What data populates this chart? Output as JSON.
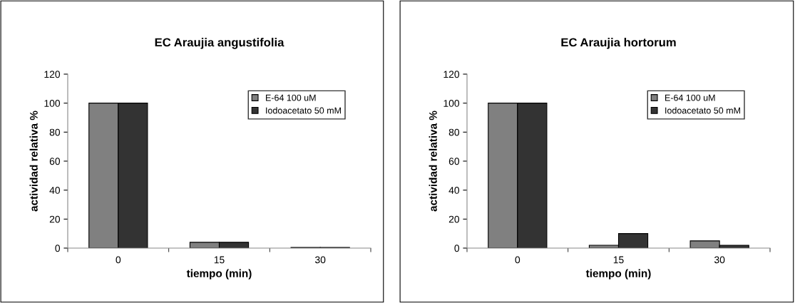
{
  "chart_data": [
    {
      "type": "bar",
      "title": "EC Araujia angustifolia",
      "xlabel": "tiempo (min)",
      "ylabel": "actividad relativa %",
      "categories": [
        "0",
        "15",
        "30"
      ],
      "series": [
        {
          "name": "E-64 100 uM",
          "color": "#808080",
          "values": [
            100,
            4,
            0.5
          ]
        },
        {
          "name": "Iodoacetato 50 mM",
          "color": "#333333",
          "values": [
            100,
            4,
            0.5
          ]
        }
      ],
      "ylim": [
        0,
        120
      ],
      "yticks": [
        0,
        20,
        40,
        60,
        80,
        100,
        120
      ],
      "grid": false,
      "legend": "top right"
    },
    {
      "type": "bar",
      "title": "EC Araujia hortorum",
      "xlabel": "tiempo (min)",
      "ylabel": "actividad relativa %",
      "categories": [
        "0",
        "15",
        "30"
      ],
      "series": [
        {
          "name": "E-64 100 uM",
          "color": "#808080",
          "values": [
            100,
            2,
            5
          ]
        },
        {
          "name": "Iodoacetato 50 mM",
          "color": "#333333",
          "values": [
            100,
            10,
            2
          ]
        }
      ],
      "ylim": [
        0,
        120
      ],
      "yticks": [
        0,
        20,
        40,
        60,
        80,
        100,
        120
      ],
      "grid": false,
      "legend": "top right"
    }
  ]
}
